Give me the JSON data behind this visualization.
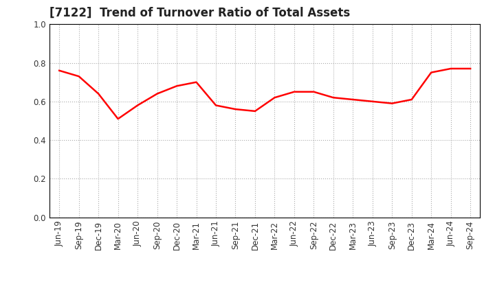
{
  "title": "[7122]  Trend of Turnover Ratio of Total Assets",
  "labels": [
    "Jun-19",
    "Sep-19",
    "Dec-19",
    "Mar-20",
    "Jun-20",
    "Sep-20",
    "Dec-20",
    "Mar-21",
    "Jun-21",
    "Sep-21",
    "Dec-21",
    "Mar-22",
    "Jun-22",
    "Sep-22",
    "Dec-22",
    "Mar-23",
    "Jun-23",
    "Sep-23",
    "Dec-23",
    "Mar-24",
    "Jun-24",
    "Sep-24"
  ],
  "values": [
    0.76,
    0.73,
    0.64,
    0.51,
    0.58,
    0.64,
    0.68,
    0.7,
    0.58,
    0.56,
    0.55,
    0.62,
    0.65,
    0.65,
    0.62,
    0.61,
    0.6,
    0.59,
    0.61,
    0.75,
    0.77,
    0.77
  ],
  "line_color": "#FF0000",
  "line_width": 1.8,
  "ylim": [
    0.0,
    1.0
  ],
  "yticks": [
    0.0,
    0.2,
    0.4,
    0.6,
    0.8,
    1.0
  ],
  "grid_color": "#aaaaaa",
  "background_color": "#ffffff",
  "title_fontsize": 12,
  "tick_fontsize": 8.5,
  "title_color": "#222222"
}
